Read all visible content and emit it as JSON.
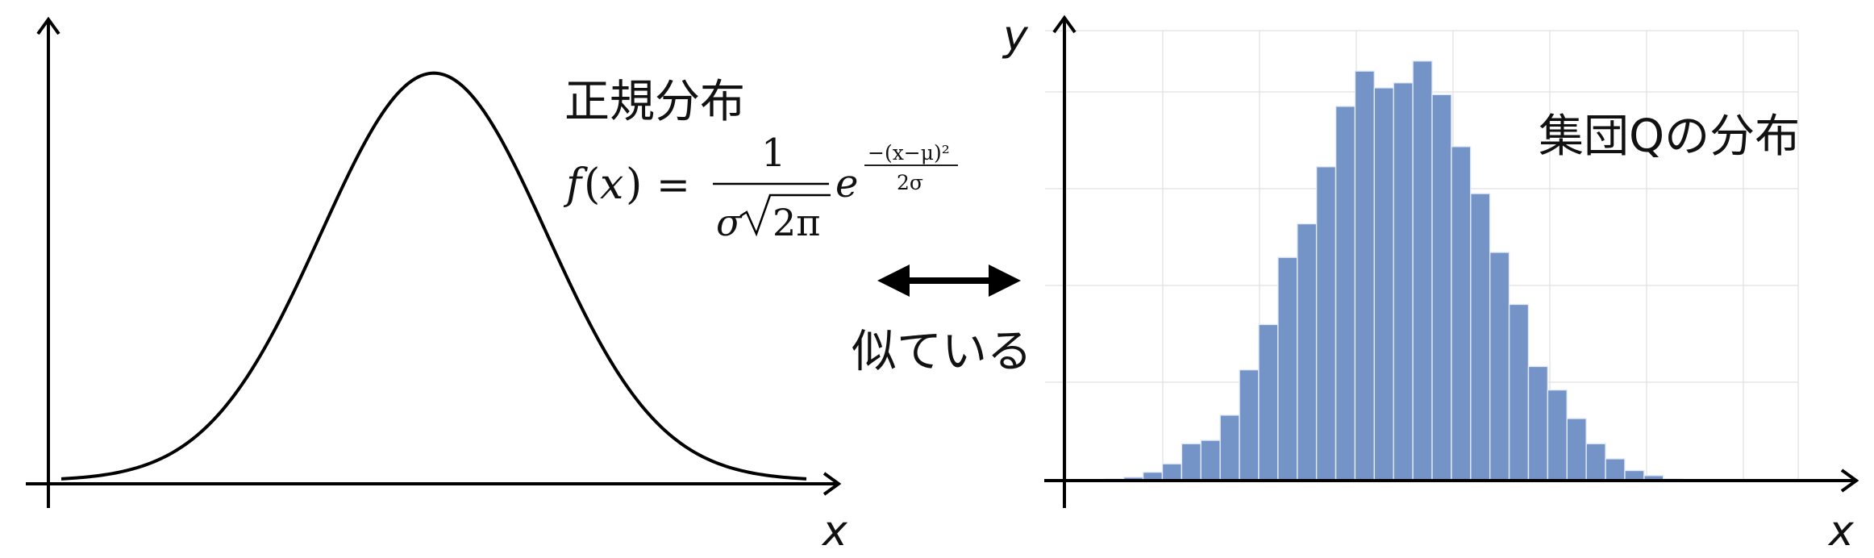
{
  "left_panel": {
    "x_axis_label": "x",
    "title": "正規分布",
    "formula": {
      "lhs_f": "f",
      "lhs_open": "(",
      "lhs_x": "x",
      "lhs_close": ")",
      "equals": "=",
      "numerator": "1",
      "denominator_sigma": "σ",
      "denominator_radicand": "2π",
      "base": "e",
      "exponent_numerator": "−(x−μ)²",
      "exponent_denominator": "2σ"
    }
  },
  "connector": {
    "label": "似ている"
  },
  "right_panel": {
    "y_axis_label": "y",
    "x_axis_label": "x",
    "title": "集団Qの分布"
  },
  "chart_data": [
    {
      "type": "line",
      "title": "正規分布",
      "xlabel": "x",
      "ylabel": "",
      "curve": "normal density",
      "mean": 0,
      "sd": 1,
      "xlim": [
        -3.3,
        3.3
      ],
      "ylim": [
        0,
        0.42
      ],
      "x": [
        -3.3,
        -3.0,
        -2.7,
        -2.4,
        -2.1,
        -1.8,
        -1.5,
        -1.2,
        -0.9,
        -0.6,
        -0.3,
        0.0,
        0.3,
        0.6,
        0.9,
        1.2,
        1.5,
        1.8,
        2.1,
        2.4,
        2.7,
        3.0,
        3.3
      ],
      "y": [
        0.0017,
        0.0044,
        0.0104,
        0.0224,
        0.044,
        0.079,
        0.1295,
        0.1942,
        0.2661,
        0.3332,
        0.3814,
        0.3989,
        0.3814,
        0.3332,
        0.2661,
        0.1942,
        0.1295,
        0.079,
        0.044,
        0.0224,
        0.0104,
        0.0044,
        0.0017
      ],
      "color": "#000000",
      "grid": false
    },
    {
      "type": "bar",
      "title": "集団Qの分布",
      "xlabel": "x",
      "ylabel": "y",
      "bins": 38,
      "values": [
        0.0,
        0.2,
        0.4,
        0.8,
        2.0,
        4.0,
        8.8,
        9.6,
        15.6,
        26.4,
        37.2,
        53.2,
        61.2,
        74.8,
        89.2,
        97.6,
        93.6,
        94.8,
        100.0,
        92.0,
        79.6,
        68.4,
        54.4,
        42.0,
        27.2,
        21.6,
        14.8,
        8.8,
        5.2,
        2.4,
        1.2,
        0.4,
        0.0,
        0.0,
        0.0,
        0.0,
        0.0,
        0.0
      ],
      "ylim": [
        0,
        108
      ],
      "bar_color": "#7493c7",
      "bar_edge_color": "#e4ebf6",
      "grid": true,
      "grid_color": "#e5e5e5"
    }
  ]
}
